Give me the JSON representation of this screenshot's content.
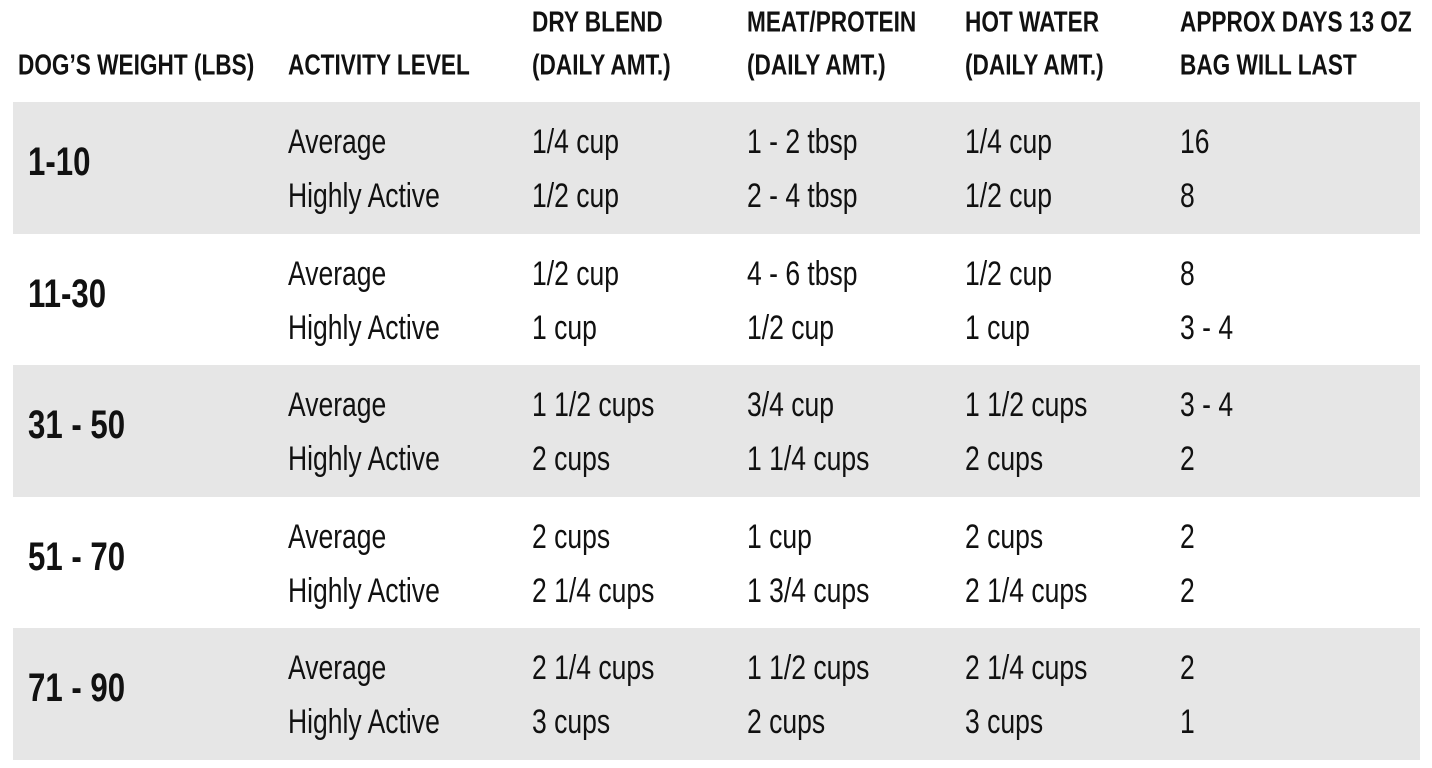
{
  "table": {
    "headers": [
      [
        "DOG’S WEIGHT (LBS)"
      ],
      [
        "ACTIVITY LEVEL"
      ],
      [
        "DRY BLEND",
        "(DAILY AMT.)"
      ],
      [
        "MEAT/PROTEIN",
        "(DAILY AMT.)"
      ],
      [
        "HOT WATER",
        "(DAILY AMT.)"
      ],
      [
        "APPROX DAYS 13 OZ",
        "BAG WILL LAST"
      ]
    ],
    "groups": [
      {
        "weight": "1-10",
        "rows": [
          [
            "Average",
            "1/4 cup",
            "1 - 2 tbsp",
            "1/4 cup",
            "16"
          ],
          [
            "Highly Active",
            "1/2 cup",
            "2 - 4 tbsp",
            "1/2 cup",
            "8"
          ]
        ]
      },
      {
        "weight": "11-30",
        "rows": [
          [
            "Average",
            "1/2 cup",
            "4 - 6 tbsp",
            "1/2 cup",
            "8"
          ],
          [
            "Highly Active",
            "1 cup",
            "1/2 cup",
            "1 cup",
            "3 - 4"
          ]
        ]
      },
      {
        "weight": "31 - 50",
        "rows": [
          [
            "Average",
            "1 1/2 cups",
            "3/4 cup",
            "1 1/2 cups",
            "3 - 4"
          ],
          [
            "Highly Active",
            "2 cups",
            "1 1/4 cups",
            "2 cups",
            "2"
          ]
        ]
      },
      {
        "weight": "51 - 70",
        "rows": [
          [
            "Average",
            "2 cups",
            "1 cup",
            "2 cups",
            "2"
          ],
          [
            "Highly Active",
            "2 1/4 cups",
            "1 3/4 cups",
            "2 1/4 cups",
            "2"
          ]
        ]
      },
      {
        "weight": "71 - 90",
        "rows": [
          [
            "Average",
            "2 1/4 cups",
            "1 1/2 cups",
            "2 1/4 cups",
            "2"
          ],
          [
            "Highly Active",
            "3 cups",
            "2 cups",
            "3 cups",
            "1"
          ]
        ]
      }
    ]
  }
}
